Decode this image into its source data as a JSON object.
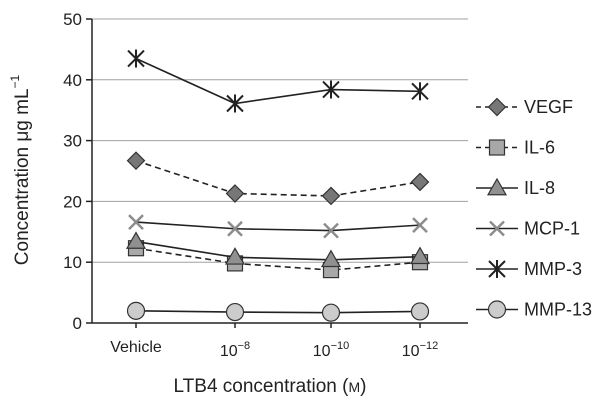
{
  "chart_data": {
    "type": "line",
    "categories": [
      {
        "label": "Vehicle",
        "base": "",
        "exp": ""
      },
      {
        "label": "",
        "base": "10",
        "exp": "−8"
      },
      {
        "label": "",
        "base": "10",
        "exp": "−10"
      },
      {
        "label": "",
        "base": "10",
        "exp": "−12"
      }
    ],
    "xlabel": {
      "text": "LTB4 concentration (",
      "unit": "M",
      "close": ")"
    },
    "ylabel": {
      "text": "Concentration μg mL",
      "exp": "−1"
    },
    "ylim": [
      0,
      50
    ],
    "yticks": [
      0,
      10,
      20,
      30,
      40,
      50
    ],
    "grid": true,
    "legend_position": "right",
    "series": [
      {
        "name": "VEGF",
        "values": [
          26.7,
          21.3,
          20.9,
          23.2
        ],
        "marker": "diamond",
        "dash": true,
        "fill": "#777777"
      },
      {
        "name": "IL-6",
        "values": [
          12.3,
          9.8,
          8.7,
          10.0
        ],
        "marker": "square",
        "dash": true,
        "fill": "#a8a8a8"
      },
      {
        "name": "IL-8",
        "values": [
          13.4,
          10.8,
          10.4,
          10.9
        ],
        "marker": "triangle",
        "dash": false,
        "fill": "#909090"
      },
      {
        "name": "MCP-1",
        "values": [
          16.6,
          15.5,
          15.2,
          16.1
        ],
        "marker": "x",
        "dash": false,
        "fill": "#8c8c8c"
      },
      {
        "name": "MMP-3",
        "values": [
          43.5,
          36.1,
          38.4,
          38.1
        ],
        "marker": "star",
        "dash": false,
        "fill": "#222222"
      },
      {
        "name": "MMP-13",
        "values": [
          2.0,
          1.8,
          1.7,
          1.9
        ],
        "marker": "circle",
        "dash": false,
        "fill": "#cccccc"
      }
    ]
  }
}
